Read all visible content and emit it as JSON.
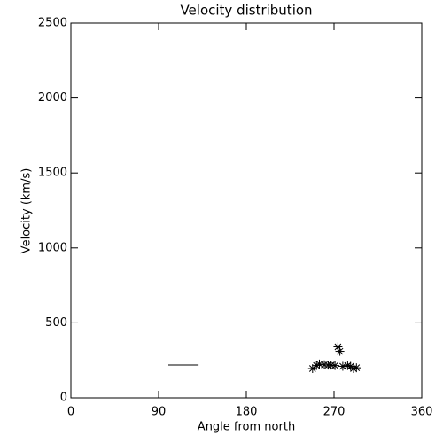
{
  "chart_data": {
    "type": "scatter",
    "title": "Velocity distribution",
    "x_label": "Angle from north",
    "y_label": "Velocity (km/s)",
    "x": [
      248,
      252,
      255,
      260,
      264,
      267,
      271,
      274,
      276,
      279,
      284,
      287,
      290,
      293
    ],
    "values": [
      195,
      215,
      225,
      220,
      218,
      218,
      215,
      340,
      310,
      210,
      215,
      210,
      195,
      200
    ],
    "color": "#000000",
    "marker": "asterisk",
    "segment": {
      "x": [
        100,
        131
      ],
      "values": [
        219,
        219
      ]
    },
    "xlim": [
      0,
      360
    ],
    "xticks": [
      0,
      90,
      180,
      270,
      360
    ],
    "ylim": [
      0,
      2500
    ],
    "yticks": [
      0,
      500,
      1000,
      1500,
      2000,
      2500
    ]
  }
}
